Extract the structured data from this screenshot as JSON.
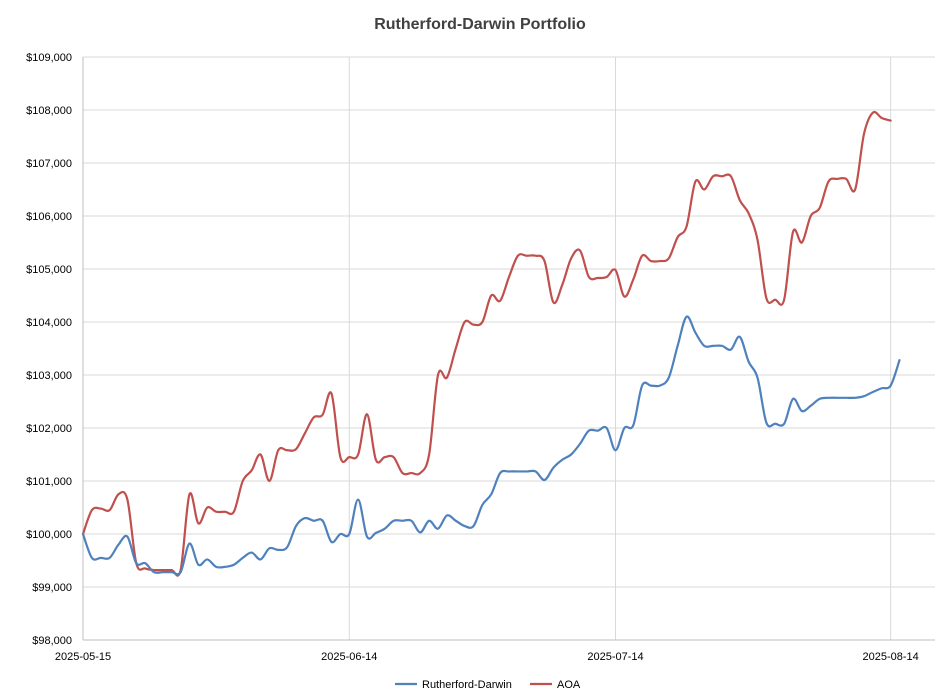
{
  "chart_data": {
    "type": "line",
    "title": "Rutherford-Darwin Portfolio",
    "xlabel": "",
    "ylabel": "",
    "x_ticks": [
      "2025-05-15",
      "2025-06-14",
      "2025-07-14",
      "2025-08-14"
    ],
    "x_tick_days": [
      0,
      30,
      60,
      91
    ],
    "xlim_days": [
      0,
      96
    ],
    "y_ticks": [
      "$98,000",
      "$99,000",
      "$100,000",
      "$101,000",
      "$102,000",
      "$103,000",
      "$104,000",
      "$105,000",
      "$106,000",
      "$107,000",
      "$108,000",
      "$109,000"
    ],
    "ylim": [
      98000,
      109000
    ],
    "grid": true,
    "legend_position": "bottom",
    "series": [
      {
        "name": "Rutherford-Darwin",
        "color": "#4f81bd",
        "points": [
          [
            0,
            100000
          ],
          [
            1,
            99550
          ],
          [
            2,
            99550
          ],
          [
            3,
            99550
          ],
          [
            4,
            99800
          ],
          [
            5,
            99950
          ],
          [
            6,
            99450
          ],
          [
            7,
            99450
          ],
          [
            8,
            99280
          ],
          [
            9,
            99280
          ],
          [
            10,
            99280
          ],
          [
            11,
            99280
          ],
          [
            12,
            99820
          ],
          [
            13,
            99420
          ],
          [
            14,
            99520
          ],
          [
            15,
            99380
          ],
          [
            16,
            99380
          ],
          [
            17,
            99420
          ],
          [
            18,
            99550
          ],
          [
            19,
            99650
          ],
          [
            20,
            99520
          ],
          [
            21,
            99730
          ],
          [
            22,
            99700
          ],
          [
            23,
            99750
          ],
          [
            24,
            100150
          ],
          [
            25,
            100300
          ],
          [
            26,
            100250
          ],
          [
            27,
            100250
          ],
          [
            28,
            99850
          ],
          [
            29,
            100000
          ],
          [
            30,
            100000
          ],
          [
            31,
            100650
          ],
          [
            32,
            99950
          ],
          [
            33,
            100020
          ],
          [
            34,
            100100
          ],
          [
            35,
            100250
          ],
          [
            36,
            100250
          ],
          [
            37,
            100250
          ],
          [
            38,
            100030
          ],
          [
            39,
            100250
          ],
          [
            40,
            100100
          ],
          [
            41,
            100350
          ],
          [
            42,
            100250
          ],
          [
            43,
            100150
          ],
          [
            44,
            100150
          ],
          [
            45,
            100550
          ],
          [
            46,
            100750
          ],
          [
            47,
            101150
          ],
          [
            48,
            101180
          ],
          [
            49,
            101180
          ],
          [
            50,
            101180
          ],
          [
            51,
            101180
          ],
          [
            52,
            101020
          ],
          [
            53,
            101250
          ],
          [
            54,
            101400
          ],
          [
            55,
            101500
          ],
          [
            56,
            101700
          ],
          [
            57,
            101950
          ],
          [
            58,
            101950
          ],
          [
            59,
            102000
          ],
          [
            60,
            101580
          ],
          [
            61,
            102000
          ],
          [
            62,
            102050
          ],
          [
            63,
            102800
          ],
          [
            64,
            102800
          ],
          [
            65,
            102800
          ],
          [
            66,
            102950
          ],
          [
            67,
            103550
          ],
          [
            68,
            104100
          ],
          [
            69,
            103800
          ],
          [
            70,
            103550
          ],
          [
            71,
            103550
          ],
          [
            72,
            103550
          ],
          [
            73,
            103480
          ],
          [
            74,
            103720
          ],
          [
            75,
            103250
          ],
          [
            76,
            102950
          ],
          [
            77,
            102100
          ],
          [
            78,
            102080
          ],
          [
            79,
            102080
          ],
          [
            80,
            102550
          ],
          [
            81,
            102320
          ],
          [
            82,
            102420
          ],
          [
            83,
            102550
          ],
          [
            84,
            102570
          ],
          [
            85,
            102570
          ],
          [
            86,
            102570
          ],
          [
            87,
            102570
          ],
          [
            88,
            102600
          ],
          [
            89,
            102680
          ],
          [
            90,
            102750
          ],
          [
            91,
            102800
          ],
          [
            92,
            103280
          ]
        ]
      },
      {
        "name": "AOA",
        "color": "#c0504d",
        "points": [
          [
            0,
            100000
          ],
          [
            1,
            100450
          ],
          [
            2,
            100480
          ],
          [
            3,
            100450
          ],
          [
            4,
            100750
          ],
          [
            5,
            100650
          ],
          [
            6,
            99450
          ],
          [
            7,
            99350
          ],
          [
            8,
            99320
          ],
          [
            9,
            99320
          ],
          [
            10,
            99320
          ],
          [
            11,
            99320
          ],
          [
            12,
            100750
          ],
          [
            13,
            100200
          ],
          [
            14,
            100500
          ],
          [
            15,
            100420
          ],
          [
            16,
            100420
          ],
          [
            17,
            100420
          ],
          [
            18,
            101000
          ],
          [
            19,
            101200
          ],
          [
            20,
            101500
          ],
          [
            21,
            101000
          ],
          [
            22,
            101580
          ],
          [
            23,
            101580
          ],
          [
            24,
            101600
          ],
          [
            25,
            101900
          ],
          [
            26,
            102200
          ],
          [
            27,
            102250
          ],
          [
            28,
            102650
          ],
          [
            29,
            101450
          ],
          [
            30,
            101450
          ],
          [
            31,
            101500
          ],
          [
            32,
            102260
          ],
          [
            33,
            101400
          ],
          [
            34,
            101450
          ],
          [
            35,
            101450
          ],
          [
            36,
            101150
          ],
          [
            37,
            101150
          ],
          [
            38,
            101150
          ],
          [
            39,
            101500
          ],
          [
            40,
            103000
          ],
          [
            41,
            102950
          ],
          [
            42,
            103500
          ],
          [
            43,
            104000
          ],
          [
            44,
            103950
          ],
          [
            45,
            104000
          ],
          [
            46,
            104500
          ],
          [
            47,
            104400
          ],
          [
            48,
            104850
          ],
          [
            49,
            105250
          ],
          [
            50,
            105250
          ],
          [
            51,
            105250
          ],
          [
            52,
            105150
          ],
          [
            53,
            104370
          ],
          [
            54,
            104700
          ],
          [
            55,
            105200
          ],
          [
            56,
            105350
          ],
          [
            57,
            104850
          ],
          [
            58,
            104830
          ],
          [
            59,
            104850
          ],
          [
            60,
            104980
          ],
          [
            61,
            104480
          ],
          [
            62,
            104800
          ],
          [
            63,
            105250
          ],
          [
            64,
            105150
          ],
          [
            65,
            105150
          ],
          [
            66,
            105200
          ],
          [
            67,
            105600
          ],
          [
            68,
            105800
          ],
          [
            69,
            106650
          ],
          [
            70,
            106500
          ],
          [
            71,
            106750
          ],
          [
            72,
            106750
          ],
          [
            73,
            106750
          ],
          [
            74,
            106300
          ],
          [
            75,
            106050
          ],
          [
            76,
            105550
          ],
          [
            77,
            104450
          ],
          [
            78,
            104420
          ],
          [
            79,
            104420
          ],
          [
            80,
            105700
          ],
          [
            81,
            105500
          ],
          [
            82,
            106000
          ],
          [
            83,
            106150
          ],
          [
            84,
            106650
          ],
          [
            85,
            106700
          ],
          [
            86,
            106700
          ],
          [
            87,
            106500
          ],
          [
            88,
            107550
          ],
          [
            89,
            107950
          ],
          [
            90,
            107850
          ],
          [
            91,
            107800
          ]
        ]
      }
    ]
  }
}
